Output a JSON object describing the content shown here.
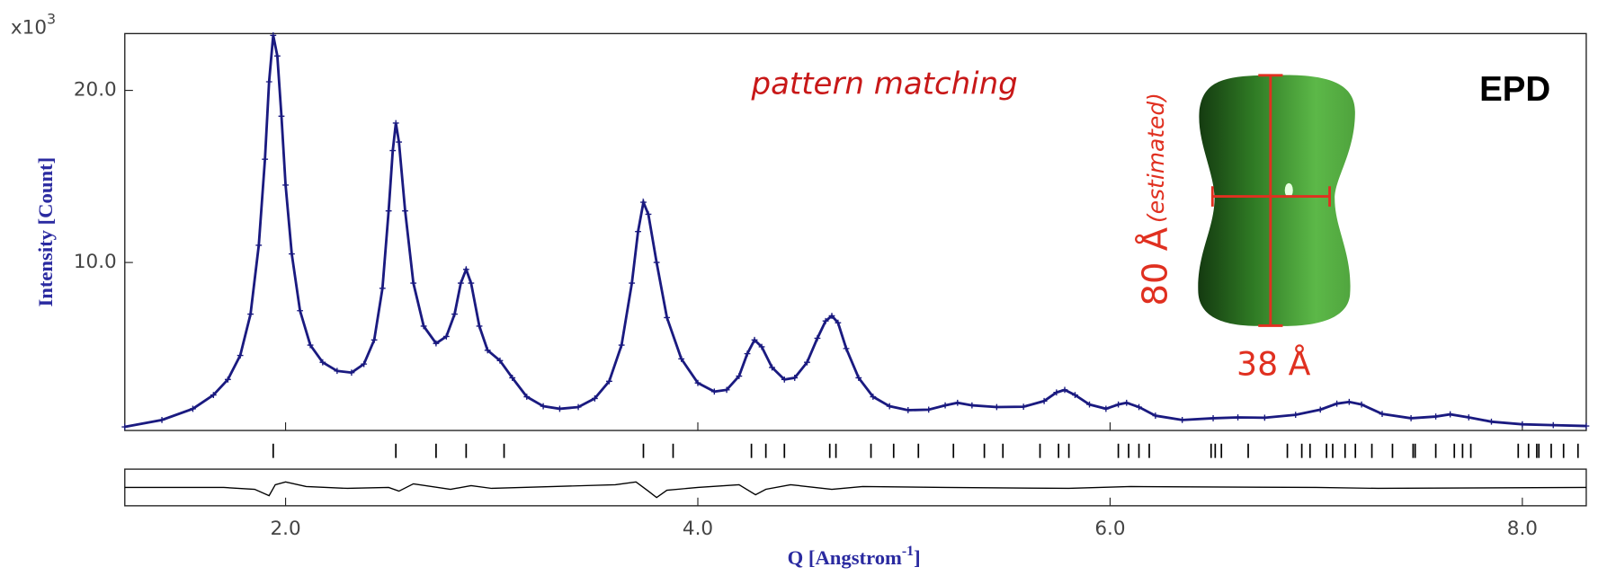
{
  "chart_data": {
    "type": "line",
    "y_scale_label": {
      "base": "x10",
      "exponent": "3"
    },
    "ylabel": "Intensity [Count]",
    "xlabel": {
      "text": "Q [Angstrom",
      "superscript": "-1",
      "suffix": "]"
    },
    "annotations": {
      "method": "pattern matching",
      "sample": "EPD",
      "height": "80 Å",
      "height_note": "(estimated)",
      "width": "38 Å"
    },
    "xlim": [
      1.22,
      8.31
    ],
    "ylim": [
      0.24,
      23.3
    ],
    "xticks": [
      {
        "value": 2,
        "label": "2.0"
      },
      {
        "value": 4,
        "label": "4.0"
      },
      {
        "value": 6,
        "label": "6.0"
      },
      {
        "value": 8,
        "label": "8.0"
      }
    ],
    "yticks": [
      {
        "value": 10,
        "label": "10.0"
      },
      {
        "value": 20,
        "label": "20.0"
      }
    ],
    "x": [
      1.22,
      1.4,
      1.55,
      1.65,
      1.72,
      1.78,
      1.83,
      1.87,
      1.9,
      1.92,
      1.94,
      1.96,
      1.98,
      2.0,
      2.03,
      2.07,
      2.12,
      2.18,
      2.25,
      2.32,
      2.38,
      2.43,
      2.47,
      2.5,
      2.52,
      2.535,
      2.55,
      2.58,
      2.62,
      2.67,
      2.73,
      2.78,
      2.82,
      2.85,
      2.876,
      2.9,
      2.94,
      2.98,
      3.04,
      3.1,
      3.17,
      3.25,
      3.33,
      3.42,
      3.5,
      3.57,
      3.63,
      3.68,
      3.71,
      3.736,
      3.76,
      3.8,
      3.85,
      3.92,
      4.0,
      4.08,
      4.14,
      4.2,
      4.24,
      4.275,
      4.31,
      4.36,
      4.42,
      4.47,
      4.53,
      4.58,
      4.62,
      4.65,
      4.68,
      4.72,
      4.78,
      4.85,
      4.93,
      5.02,
      5.12,
      5.2,
      5.26,
      5.33,
      5.45,
      5.58,
      5.68,
      5.74,
      5.78,
      5.83,
      5.9,
      5.98,
      6.04,
      6.08,
      6.14,
      6.22,
      6.35,
      6.5,
      6.62,
      6.75,
      6.9,
      7.02,
      7.1,
      7.16,
      7.22,
      7.32,
      7.46,
      7.58,
      7.65,
      7.74,
      7.85,
      8.0,
      8.15,
      8.31
    ],
    "series": [
      {
        "color": "#1a1a80",
        "values": [
          0.45,
          0.85,
          1.5,
          2.3,
          3.2,
          4.6,
          7.0,
          11.0,
          16.0,
          20.5,
          23.2,
          22.0,
          18.5,
          14.5,
          10.5,
          7.2,
          5.2,
          4.2,
          3.7,
          3.6,
          4.1,
          5.5,
          8.5,
          13.0,
          16.5,
          18.1,
          17.0,
          13.0,
          8.8,
          6.3,
          5.3,
          5.7,
          7.0,
          8.8,
          9.6,
          8.8,
          6.3,
          4.9,
          4.3,
          3.3,
          2.2,
          1.65,
          1.5,
          1.6,
          2.1,
          3.1,
          5.2,
          8.8,
          11.8,
          13.5,
          12.8,
          10.0,
          6.8,
          4.4,
          3.0,
          2.5,
          2.6,
          3.4,
          4.7,
          5.5,
          5.1,
          3.9,
          3.2,
          3.3,
          4.2,
          5.6,
          6.6,
          6.9,
          6.5,
          5.0,
          3.3,
          2.2,
          1.65,
          1.42,
          1.45,
          1.7,
          1.85,
          1.7,
          1.6,
          1.62,
          1.95,
          2.45,
          2.6,
          2.3,
          1.75,
          1.5,
          1.75,
          1.85,
          1.6,
          1.1,
          0.85,
          0.95,
          1.0,
          0.98,
          1.15,
          1.45,
          1.8,
          1.9,
          1.75,
          1.2,
          0.95,
          1.05,
          1.18,
          1.0,
          0.75,
          0.6,
          0.55,
          0.5
        ]
      }
    ],
    "reflections": [
      1.94,
      2.535,
      2.73,
      2.876,
      3.06,
      3.736,
      3.88,
      4.26,
      4.33,
      4.42,
      4.64,
      4.67,
      4.84,
      4.95,
      5.07,
      5.24,
      5.39,
      5.48,
      5.66,
      5.75,
      5.8,
      6.04,
      6.09,
      6.14,
      6.19,
      6.49,
      6.51,
      6.54,
      6.67,
      6.86,
      6.93,
      6.97,
      7.05,
      7.08,
      7.14,
      7.19,
      7.27,
      7.37,
      7.47,
      7.48,
      7.58,
      7.67,
      7.71,
      7.75,
      7.98,
      8.03,
      8.07,
      8.08,
      8.14,
      8.2,
      8.27
    ],
    "difference": {
      "color": "#000000",
      "ylim": [
        -2,
        2
      ],
      "x": [
        1.22,
        1.7,
        1.85,
        1.92,
        1.95,
        2.0,
        2.1,
        2.3,
        2.5,
        2.55,
        2.62,
        2.8,
        2.9,
        3.0,
        3.3,
        3.6,
        3.7,
        3.76,
        3.8,
        3.85,
        4.0,
        4.2,
        4.28,
        4.33,
        4.45,
        4.65,
        4.8,
        5.2,
        5.8,
        6.1,
        7.0,
        7.3,
        8.31
      ],
      "values": [
        0,
        0,
        -0.2,
        -0.9,
        0.3,
        0.6,
        0.1,
        -0.1,
        0,
        -0.4,
        0.4,
        -0.2,
        0.2,
        -0.1,
        0.1,
        0.3,
        0.6,
        -0.4,
        -1.1,
        -0.3,
        0,
        0.3,
        -0.8,
        -0.2,
        0.3,
        -0.2,
        0.1,
        0,
        -0.1,
        0.1,
        0,
        -0.1,
        0
      ]
    }
  }
}
